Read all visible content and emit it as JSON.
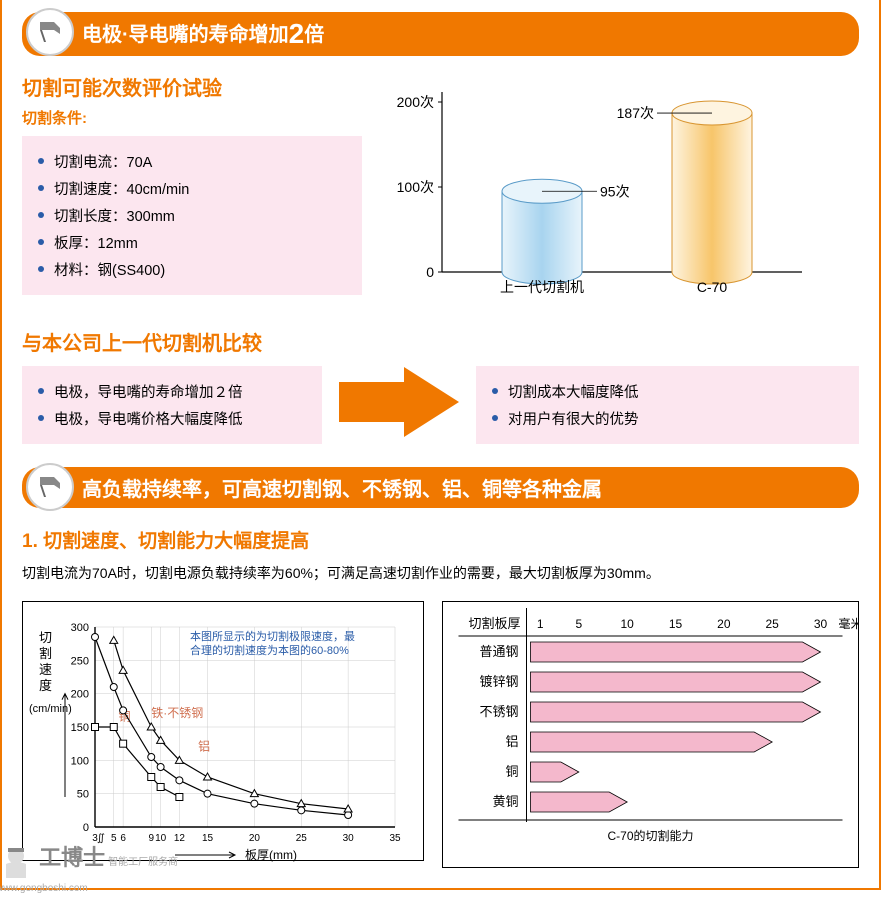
{
  "header1": {
    "text_before": "电极·导电嘴的寿命增加",
    "big": "2",
    "text_after": "倍"
  },
  "test": {
    "title": "切割可能次数评价试验",
    "cond_label": "切割条件:",
    "items": [
      "切割电流：70A",
      "切割速度：40cm/min",
      "切割长度：300mm",
      "板厚：12mm",
      "材料：钢(SS400)"
    ]
  },
  "bar_chart": {
    "ymax": 200,
    "yticks": [
      0,
      100,
      200
    ],
    "ytick_labels": [
      "0",
      "100次",
      "200次"
    ],
    "bars": [
      {
        "label": "上一代切割机",
        "value": 95,
        "value_label": "95次",
        "fill_top": "#e8f4fb",
        "fill_bottom": "#a8d4ef",
        "stroke": "#5a9bc8"
      },
      {
        "label": "C-70",
        "value": 187,
        "value_label": "187次",
        "fill_top": "#fef4e0",
        "fill_bottom": "#f7c56a",
        "stroke": "#d89530"
      }
    ],
    "text_color": "#000"
  },
  "compare": {
    "title": "与本公司上一代切割机比较",
    "left_items": [
      "电极，导电嘴的寿命增加２倍",
      "电极，导电嘴价格大幅度降低"
    ],
    "right_items": [
      "切割成本大幅度降低",
      "对用户有很大的优势"
    ],
    "arrow_color": "#f07800"
  },
  "header2": "高负载持续率，可高速切割钢、不锈钢、铝、铜等各种金属",
  "sec2": {
    "title": "1. 切割速度、切割能力大幅度提高",
    "desc": "切割电流为70A时，切割电源负载持续率为60%；可满足高速切割作业的需要，最大切割板厚为30mm。"
  },
  "line_chart": {
    "ylabel": "切\n割\n速\n度",
    "yunit": "(cm/min)",
    "xlabel": "板厚(mm)",
    "xticks": [
      3,
      5,
      6,
      9,
      10,
      12,
      15,
      20,
      25,
      30,
      35
    ],
    "xlim": [
      3,
      35
    ],
    "yticks": [
      0,
      50,
      100,
      150,
      200,
      250,
      300
    ],
    "ylim": [
      0,
      300
    ],
    "note": "本图所显示的为切割极限速度，最合理的切割速度为本图的60-80%",
    "note_color": "#2a5ca8",
    "series": [
      {
        "name": "铜",
        "label": "铜",
        "color": "#d07050",
        "marker": "square",
        "points": [
          [
            3,
            150
          ],
          [
            5,
            150
          ],
          [
            6,
            125
          ],
          [
            9,
            75
          ],
          [
            10,
            60
          ],
          [
            12,
            45
          ]
        ]
      },
      {
        "name": "铁·不锈钢",
        "label": "铁·不锈钢",
        "color": "#d07050",
        "marker": "circle",
        "points": [
          [
            3,
            285
          ],
          [
            5,
            210
          ],
          [
            6,
            175
          ],
          [
            9,
            105
          ],
          [
            10,
            90
          ],
          [
            12,
            70
          ],
          [
            15,
            50
          ],
          [
            20,
            35
          ],
          [
            25,
            25
          ],
          [
            30,
            18
          ]
        ]
      },
      {
        "name": "铝",
        "label": "铝",
        "color": "#d07050",
        "marker": "triangle",
        "points": [
          [
            5,
            280
          ],
          [
            6,
            235
          ],
          [
            9,
            150
          ],
          [
            10,
            130
          ],
          [
            12,
            100
          ],
          [
            15,
            75
          ],
          [
            20,
            50
          ],
          [
            25,
            35
          ],
          [
            30,
            27
          ]
        ]
      }
    ]
  },
  "hbar_chart": {
    "title": "C-70的切割能力",
    "xlabel_header": "切割板厚",
    "xticks": [
      1,
      5,
      10,
      15,
      20,
      25,
      30
    ],
    "xunit": "毫米",
    "xmax": 30,
    "rows": [
      {
        "label": "普通钢",
        "value": 30
      },
      {
        "label": "镀锌钢",
        "value": 30
      },
      {
        "label": "不锈钢",
        "value": 30
      },
      {
        "label": "铝",
        "value": 25
      },
      {
        "label": "铜",
        "value": 5
      },
      {
        "label": "黄铜",
        "value": 10
      }
    ],
    "bar_fill": "#f4b8cc",
    "bar_stroke": "#000"
  },
  "watermark": {
    "logo": "工博士",
    "tagline": "智能工厂服务商",
    "url": "www.gongboshi.com"
  }
}
